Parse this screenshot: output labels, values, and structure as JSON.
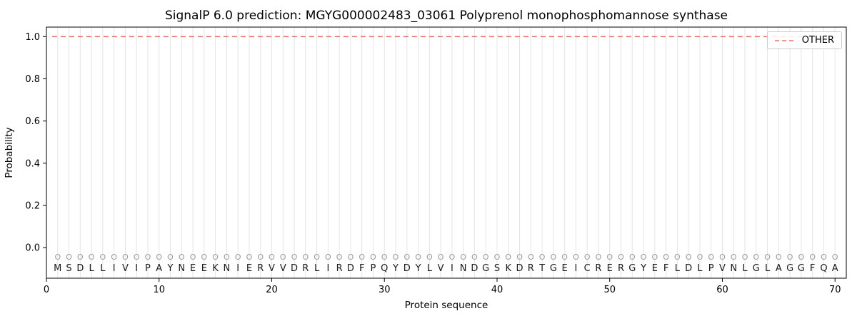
{
  "chart_data": {
    "type": "line",
    "title": "SignalP 6.0 prediction: MGYG000002483_03061 Polyprenol monophosphomannose synthase",
    "xlabel": "Protein sequence",
    "ylabel": "Probability",
    "xlim": [
      0,
      71
    ],
    "ylim": [
      -0.145,
      1.045
    ],
    "xticks": [
      0,
      10,
      20,
      30,
      40,
      50,
      60,
      70
    ],
    "yticks": [
      0.0,
      0.2,
      0.4,
      0.6,
      0.8,
      1.0
    ],
    "grid": "vertical-gridline-per-residue",
    "grid_color": "#e4e4e4",
    "frame_color": "#000000",
    "legend": {
      "position": "upper-right",
      "entries": [
        {
          "label": "OTHER",
          "color": "#ee7070",
          "dash": true
        }
      ]
    },
    "series": [
      {
        "name": "OTHER",
        "color": "#ee7070",
        "style": "dashed",
        "y_constant": 1.0,
        "x_range": [
          1,
          70
        ]
      }
    ],
    "sequence": "MSDLLIVIPAYNEEKNIERVVDRLIRDFPQYDYLVINDGSKDRTGEICRERGYEFLDLPVNLGLAGGFQA",
    "position_marker": "O",
    "marker_color": "#9a9a9a",
    "letter_color": "#1a1a1a"
  }
}
